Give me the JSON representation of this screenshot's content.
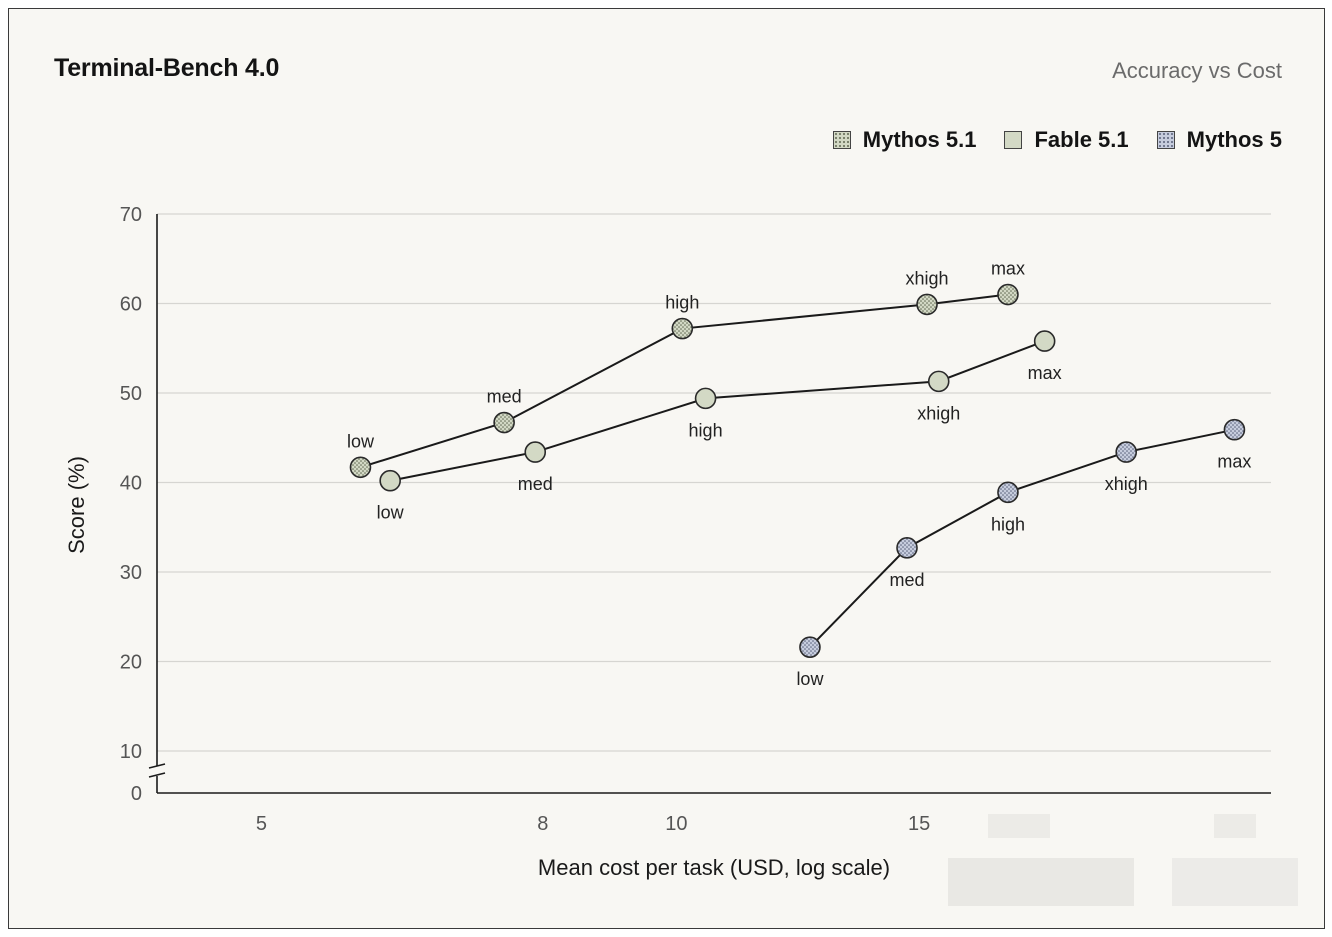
{
  "chart_data": {
    "type": "line",
    "title": "Terminal-Bench 4.0",
    "subtitle": "Accuracy vs Cost",
    "xlabel": "Mean cost per task (USD, log scale)",
    "ylabel": "Score (%)",
    "x_scale": "log",
    "xlim": [
      4.2,
      27
    ],
    "ylim": [
      0,
      70
    ],
    "y_axis_break": true,
    "x_ticks": [
      5,
      8,
      10,
      15
    ],
    "y_ticks": [
      0,
      10,
      20,
      30,
      40,
      50,
      60,
      70
    ],
    "grid": "horizontal",
    "legend_position": "top-right",
    "series": [
      {
        "name": "Mythos 5.1",
        "color": "#d2d8c4",
        "pattern": "dots",
        "label_position": "above",
        "points": [
          {
            "x": 5.9,
            "y": 41.7,
            "label": "low"
          },
          {
            "x": 7.5,
            "y": 46.7,
            "label": "med"
          },
          {
            "x": 10.1,
            "y": 57.2,
            "label": "high"
          },
          {
            "x": 15.2,
            "y": 59.9,
            "label": "xhigh"
          },
          {
            "x": 17.4,
            "y": 61.0,
            "label": "max"
          }
        ]
      },
      {
        "name": "Fable 5.1",
        "color": "#d3d9c5",
        "pattern": "solid",
        "label_position": "below",
        "points": [
          {
            "x": 6.2,
            "y": 40.2,
            "label": "low"
          },
          {
            "x": 7.9,
            "y": 43.4,
            "label": "med"
          },
          {
            "x": 10.5,
            "y": 49.4,
            "label": "high"
          },
          {
            "x": 15.5,
            "y": 51.3,
            "label": "xhigh"
          },
          {
            "x": 18.5,
            "y": 55.8,
            "label": "max"
          }
        ]
      },
      {
        "name": "Mythos 5",
        "color": "#c6ccdd",
        "pattern": "dots",
        "label_position": "below",
        "points": [
          {
            "x": 12.5,
            "y": 21.6,
            "label": "low"
          },
          {
            "x": 14.7,
            "y": 32.7,
            "label": "med"
          },
          {
            "x": 17.4,
            "y": 38.9,
            "label": "high"
          },
          {
            "x": 21.2,
            "y": 43.4,
            "label": "xhigh"
          },
          {
            "x": 25.4,
            "y": 45.9,
            "label": "max"
          }
        ]
      }
    ]
  }
}
